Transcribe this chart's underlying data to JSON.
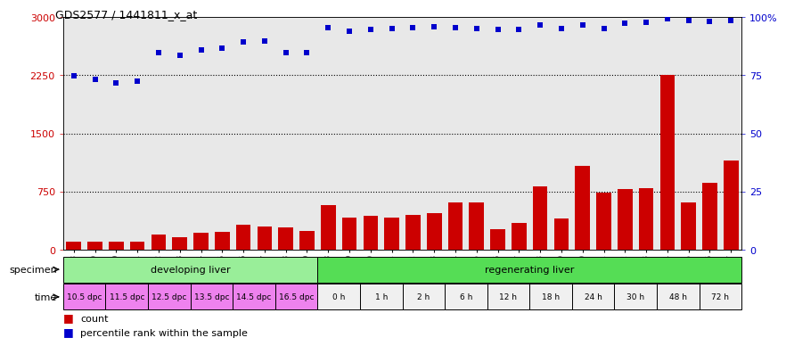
{
  "title": "GDS2577 / 1441811_x_at",
  "gsm_labels": [
    "GSM161128",
    "GSM161129",
    "GSM161130",
    "GSM161131",
    "GSM161132",
    "GSM161133",
    "GSM161134",
    "GSM161135",
    "GSM161136",
    "GSM161137",
    "GSM161138",
    "GSM161139",
    "GSM161108",
    "GSM161109",
    "GSM161110",
    "GSM161111",
    "GSM161112",
    "GSM161113",
    "GSM161114",
    "GSM161115",
    "GSM161116",
    "GSM161117",
    "GSM161118",
    "GSM161119",
    "GSM161120",
    "GSM161121",
    "GSM161122",
    "GSM161123",
    "GSM161124",
    "GSM161125",
    "GSM161126",
    "GSM161127"
  ],
  "counts": [
    100,
    105,
    100,
    110,
    195,
    160,
    215,
    225,
    320,
    305,
    285,
    245,
    570,
    420,
    440,
    420,
    445,
    470,
    615,
    615,
    265,
    345,
    815,
    405,
    1085,
    735,
    785,
    795,
    2250,
    615,
    865,
    1145
  ],
  "percentile_ranks": [
    2240,
    2190,
    2145,
    2175,
    2545,
    2510,
    2575,
    2595,
    2675,
    2695,
    2545,
    2545,
    2865,
    2815,
    2835,
    2855,
    2865,
    2875,
    2865,
    2845,
    2835,
    2835,
    2895,
    2845,
    2895,
    2845,
    2915,
    2935,
    2975,
    2955,
    2945,
    2955
  ],
  "specimen_groups": [
    {
      "label": "developing liver",
      "start": 0,
      "end": 12,
      "color": "#99ee99"
    },
    {
      "label": "regenerating liver",
      "start": 12,
      "end": 32,
      "color": "#55dd55"
    }
  ],
  "time_groups": [
    {
      "label": "10.5 dpc",
      "start": 0,
      "end": 2,
      "color": "#ee82ee"
    },
    {
      "label": "11.5 dpc",
      "start": 2,
      "end": 4,
      "color": "#ee82ee"
    },
    {
      "label": "12.5 dpc",
      "start": 4,
      "end": 6,
      "color": "#ee82ee"
    },
    {
      "label": "13.5 dpc",
      "start": 6,
      "end": 8,
      "color": "#ee82ee"
    },
    {
      "label": "14.5 dpc",
      "start": 8,
      "end": 10,
      "color": "#ee82ee"
    },
    {
      "label": "16.5 dpc",
      "start": 10,
      "end": 12,
      "color": "#ee82ee"
    },
    {
      "label": "0 h",
      "start": 12,
      "end": 14,
      "color": "#f0f0f0"
    },
    {
      "label": "1 h",
      "start": 14,
      "end": 16,
      "color": "#f0f0f0"
    },
    {
      "label": "2 h",
      "start": 16,
      "end": 18,
      "color": "#f0f0f0"
    },
    {
      "label": "6 h",
      "start": 18,
      "end": 20,
      "color": "#f0f0f0"
    },
    {
      "label": "12 h",
      "start": 20,
      "end": 22,
      "color": "#f0f0f0"
    },
    {
      "label": "18 h",
      "start": 22,
      "end": 24,
      "color": "#f0f0f0"
    },
    {
      "label": "24 h",
      "start": 24,
      "end": 26,
      "color": "#f0f0f0"
    },
    {
      "label": "30 h",
      "start": 26,
      "end": 28,
      "color": "#f0f0f0"
    },
    {
      "label": "48 h",
      "start": 28,
      "end": 30,
      "color": "#f0f0f0"
    },
    {
      "label": "72 h",
      "start": 30,
      "end": 32,
      "color": "#f0f0f0"
    }
  ],
  "y_left_ticks": [
    0,
    750,
    1500,
    2250,
    3000
  ],
  "bar_color": "#cc0000",
  "dot_color": "#0000cc",
  "plot_bg": "#e8e8e8",
  "fig_bg": "#ffffff",
  "legend_count": "count",
  "legend_percentile": "percentile rank within the sample"
}
